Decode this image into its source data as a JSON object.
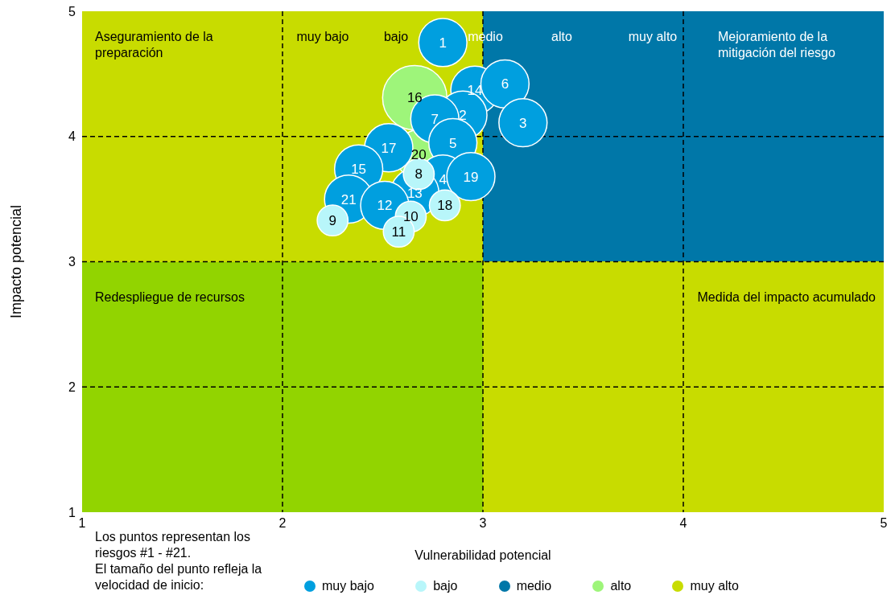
{
  "chart_data": {
    "type": "bubble",
    "xlabel": "Vulnerabilidad potencial",
    "ylabel": "Impacto potencial",
    "xlim": [
      1,
      5
    ],
    "ylim": [
      1,
      5
    ],
    "xticks": [
      1,
      2,
      3,
      4,
      5
    ],
    "yticks": [
      1,
      2,
      3,
      4,
      5
    ],
    "grid": true,
    "legend": "bottom",
    "line_style": "dashed",
    "series": [
      {
        "name": "muy bajo",
        "color": "#009fdf",
        "x": [
          2.8,
          2.96,
          3.11,
          3.2,
          2.9,
          2.76,
          2.53,
          2.85,
          2.38,
          2.8,
          2.94,
          2.66,
          2.33,
          2.51
        ],
        "values": [
          4.75,
          4.37,
          4.42,
          4.11,
          4.17,
          4.14,
          3.91,
          3.95,
          3.74,
          3.66,
          3.68,
          3.55,
          3.5,
          3.45
        ],
        "sizes": [
          0.56,
          0.56,
          0.56,
          0.56,
          0.56,
          0.56,
          0.56,
          0.56,
          0.56,
          0.56,
          0.56,
          0.56,
          0.56,
          0.56
        ]
      },
      {
        "name": "bajo",
        "color": "#b8f6fa",
        "x": [
          2.68,
          2.81,
          2.64,
          2.25,
          2.58
        ],
        "values": [
          3.7,
          3.45,
          3.36,
          3.33,
          3.24
        ],
        "sizes": [
          0.23,
          0.23,
          0.23,
          0.23,
          0.23
        ]
      },
      {
        "name": "medio",
        "color": "#0077a8"
      },
      {
        "name": "alto",
        "color": "#9ef57a",
        "x": [
          2.66,
          2.68
        ],
        "values": [
          4.31,
          3.86
        ],
        "sizes": [
          1,
          0.56
        ]
      },
      {
        "name": "muy alto",
        "color": "#c8dc00"
      }
    ],
    "annotations": [
      "Aseguramiento de la preparación",
      "Mejoramiento de la mitigación del riesgo",
      "Redespliegue de recursos",
      "Medida del impacto acumulado",
      "muy bajo",
      "bajo",
      "medio",
      "alto",
      "muy alto",
      "Los puntos representan los riesgos #1 - #21.",
      "El tamaño del punto refleja la velocidad de inicio:",
      {
        "text": "1",
        "x": 2.8,
        "y": 4.75
      },
      {
        "text": "14",
        "x": 2.96,
        "y": 4.37
      },
      {
        "text": "6",
        "x": 3.11,
        "y": 4.42
      },
      {
        "text": "3",
        "x": 3.2,
        "y": 4.11
      },
      {
        "text": "16",
        "x": 2.66,
        "y": 4.31
      },
      {
        "text": "2",
        "x": 2.9,
        "y": 4.17
      },
      {
        "text": "7",
        "x": 2.76,
        "y": 4.14
      },
      {
        "text": "17",
        "x": 2.53,
        "y": 3.91
      },
      {
        "text": "5",
        "x": 2.85,
        "y": 3.95
      },
      {
        "text": "20",
        "x": 2.68,
        "y": 3.86
      },
      {
        "text": "15",
        "x": 2.38,
        "y": 3.74
      },
      {
        "text": "8",
        "x": 2.68,
        "y": 3.7
      },
      {
        "text": "4",
        "x": 2.8,
        "y": 3.66
      },
      {
        "text": "19",
        "x": 2.94,
        "y": 3.68
      },
      {
        "text": "13",
        "x": 2.66,
        "y": 3.55
      },
      {
        "text": "21",
        "x": 2.33,
        "y": 3.5
      },
      {
        "text": "12",
        "x": 2.51,
        "y": 3.45
      },
      {
        "text": "18",
        "x": 2.81,
        "y": 3.45
      },
      {
        "text": "10",
        "x": 2.64,
        "y": 3.36
      },
      {
        "text": "9",
        "x": 2.25,
        "y": 3.33
      },
      {
        "text": "11",
        "x": 2.58,
        "y": 3.24
      }
    ]
  }
}
